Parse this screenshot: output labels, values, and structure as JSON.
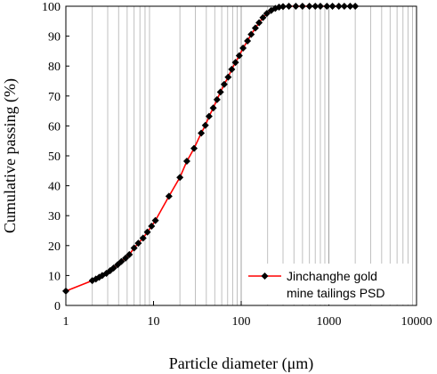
{
  "chart_data": {
    "type": "line",
    "xlabel": "Particle diameter (μm)",
    "ylabel": "Cumulative  passing (%)",
    "xscale": "log",
    "xlim": [
      1,
      10000
    ],
    "ylim": [
      0,
      100
    ],
    "xticks": [
      "1",
      "10",
      "100",
      "1000",
      "10000"
    ],
    "yticks": [
      "0",
      "10",
      "20",
      "30",
      "40",
      "50",
      "60",
      "70",
      "80",
      "90",
      "100"
    ],
    "grid": "vertical minor/major on log x-axis",
    "legend_position": "bottom-right",
    "colors": {
      "line": "#ff0000",
      "marker": "#000000",
      "grid": "#c0c0c0"
    },
    "series": [
      {
        "name": "Jinchanghe gold mine tailings PSD",
        "marker": "diamond",
        "points": [
          [
            1.0,
            4.8
          ],
          [
            2.0,
            8.3
          ],
          [
            2.2,
            8.8
          ],
          [
            2.4,
            9.4
          ],
          [
            2.6,
            10.0
          ],
          [
            2.9,
            10.7
          ],
          [
            3.2,
            11.6
          ],
          [
            3.5,
            12.5
          ],
          [
            3.9,
            13.6
          ],
          [
            4.3,
            14.7
          ],
          [
            4.8,
            15.8
          ],
          [
            5.3,
            17.0
          ],
          [
            6.0,
            19.2
          ],
          [
            6.7,
            20.8
          ],
          [
            7.6,
            22.5
          ],
          [
            8.5,
            24.5
          ],
          [
            9.5,
            26.5
          ],
          [
            10.5,
            28.4
          ],
          [
            15.0,
            36.5
          ],
          [
            20.0,
            42.8
          ],
          [
            24.0,
            48.2
          ],
          [
            29.0,
            52.5
          ],
          [
            35.0,
            57.6
          ],
          [
            39.0,
            60.2
          ],
          [
            43.0,
            63.2
          ],
          [
            48.0,
            66.0
          ],
          [
            53.0,
            68.8
          ],
          [
            58.0,
            71.3
          ],
          [
            64.0,
            73.9
          ],
          [
            71.0,
            76.3
          ],
          [
            78.0,
            78.9
          ],
          [
            86.0,
            81.2
          ],
          [
            95.0,
            83.5
          ],
          [
            105.0,
            86.0
          ],
          [
            118.0,
            88.4
          ],
          [
            130.0,
            90.6
          ],
          [
            145.0,
            92.7
          ],
          [
            160.0,
            94.5
          ],
          [
            177.0,
            96.2
          ],
          [
            196.0,
            97.6
          ],
          [
            220.0,
            98.6
          ],
          [
            245.0,
            99.3
          ],
          [
            270.0,
            99.7
          ],
          [
            300.0,
            99.9
          ],
          [
            350.0,
            100.0
          ],
          [
            420.0,
            100.0
          ],
          [
            500.0,
            100.0
          ],
          [
            600.0,
            100.0
          ],
          [
            700.0,
            100.0
          ],
          [
            800.0,
            100.0
          ],
          [
            950.0,
            100.0
          ],
          [
            1100.0,
            100.0
          ],
          [
            1300.0,
            100.0
          ],
          [
            1500.0,
            100.0
          ],
          [
            1750.0,
            100.0
          ],
          [
            2000.0,
            100.0
          ]
        ]
      }
    ]
  },
  "legend": {
    "line1": "Jinchanghe gold",
    "line2": "mine tailings PSD"
  }
}
